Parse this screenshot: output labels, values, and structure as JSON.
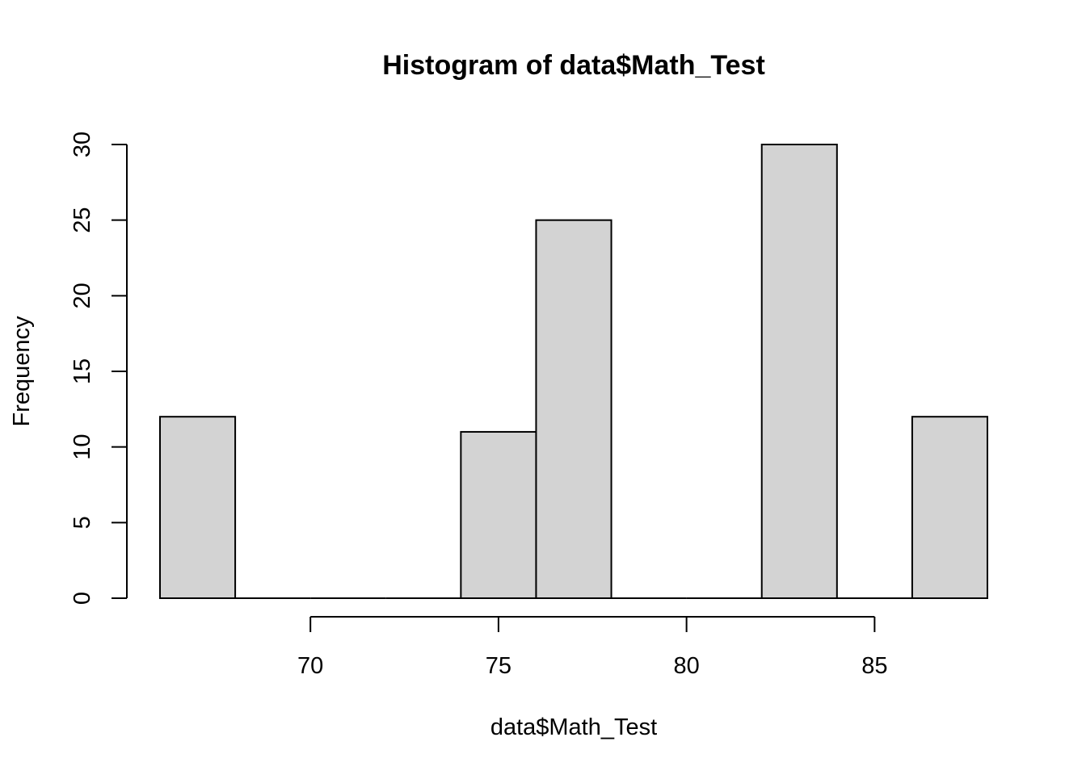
{
  "chart_data": {
    "type": "bar",
    "title": "Histogram of data$Math_Test",
    "xlabel": "data$Math_Test",
    "ylabel": "Frequency",
    "bins": [
      {
        "from": 66,
        "to": 68,
        "count": 12
      },
      {
        "from": 68,
        "to": 70,
        "count": 0
      },
      {
        "from": 70,
        "to": 72,
        "count": 0
      },
      {
        "from": 72,
        "to": 74,
        "count": 0
      },
      {
        "from": 74,
        "to": 76,
        "count": 11
      },
      {
        "from": 76,
        "to": 78,
        "count": 25
      },
      {
        "from": 78,
        "to": 80,
        "count": 0
      },
      {
        "from": 80,
        "to": 82,
        "count": 0
      },
      {
        "from": 82,
        "to": 84,
        "count": 30
      },
      {
        "from": 84,
        "to": 86,
        "count": 0
      },
      {
        "from": 86,
        "to": 88,
        "count": 12
      }
    ],
    "xlim": [
      66,
      88
    ],
    "ylim": [
      0,
      30
    ],
    "xticks": [
      70,
      75,
      80,
      85
    ],
    "yticks": [
      0,
      5,
      10,
      15,
      20,
      25,
      30
    ],
    "bar_color": "#d3d3d3",
    "grid": false,
    "legend": "none"
  }
}
